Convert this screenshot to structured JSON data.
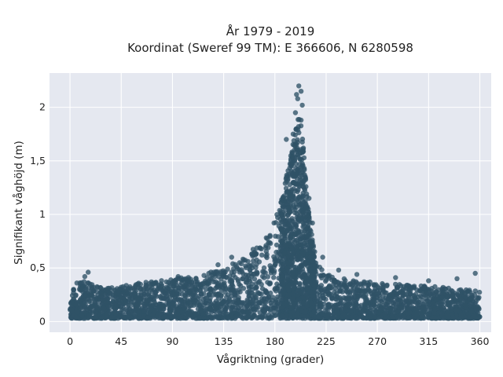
{
  "chart_data": {
    "type": "scatter",
    "title": "År 1979 - 2019",
    "subtitle": "Koordinat (Sweref 99 TM): E 366606, N 6280598",
    "xlabel": "Vågriktning (grader)",
    "ylabel": "Signifikant våghöjd (m)",
    "xlim": [
      -18,
      370
    ],
    "ylim": [
      -0.1,
      2.32
    ],
    "x_ticks": [
      0,
      45,
      90,
      135,
      180,
      225,
      270,
      315,
      360
    ],
    "x_tick_labels": [
      "0",
      "45",
      "90",
      "135",
      "180",
      "225",
      "270",
      "315",
      "360"
    ],
    "y_ticks": [
      0,
      0.5,
      1,
      1.5,
      2
    ],
    "y_tick_labels": [
      "0",
      "0,5",
      "1",
      "1,5",
      "2"
    ],
    "grid": true,
    "marker_color": "#2f5266",
    "plot_background": "#e5e8f0",
    "envelope": {
      "x": [
        0,
        10,
        20,
        30,
        45,
        60,
        75,
        90,
        105,
        120,
        135,
        145,
        155,
        165,
        175,
        180,
        185,
        190,
        195,
        198,
        200,
        202,
        204,
        206,
        208,
        210,
        213,
        216,
        220,
        225,
        230,
        240,
        255,
        270,
        285,
        300,
        315,
        330,
        345,
        360
      ],
      "y": [
        0.3,
        0.38,
        0.35,
        0.32,
        0.33,
        0.36,
        0.38,
        0.4,
        0.42,
        0.45,
        0.5,
        0.55,
        0.62,
        0.72,
        0.85,
        0.95,
        1.1,
        1.35,
        1.6,
        1.8,
        1.95,
        1.9,
        1.75,
        1.5,
        1.25,
        1.0,
        0.78,
        0.6,
        0.5,
        0.45,
        0.42,
        0.4,
        0.38,
        0.36,
        0.35,
        0.34,
        0.33,
        0.32,
        0.3,
        0.3
      ]
    },
    "notable_points": [
      {
        "x": 201,
        "y": 2.2
      },
      {
        "x": 203,
        "y": 2.15
      },
      {
        "x": 199,
        "y": 2.12
      },
      {
        "x": 200,
        "y": 2.08
      },
      {
        "x": 204,
        "y": 2.02
      },
      {
        "x": 198,
        "y": 1.95
      },
      {
        "x": 203,
        "y": 1.88
      },
      {
        "x": 199,
        "y": 1.8
      },
      {
        "x": 196,
        "y": 1.75
      },
      {
        "x": 190,
        "y": 1.7
      },
      {
        "x": 205,
        "y": 1.62
      },
      {
        "x": 194,
        "y": 1.5
      },
      {
        "x": 210,
        "y": 1.15
      },
      {
        "x": 213,
        "y": 0.92
      },
      {
        "x": 222,
        "y": 0.6
      },
      {
        "x": 236,
        "y": 0.48
      },
      {
        "x": 252,
        "y": 0.44
      },
      {
        "x": 286,
        "y": 0.41
      },
      {
        "x": 315,
        "y": 0.38
      },
      {
        "x": 340,
        "y": 0.4
      },
      {
        "x": 356,
        "y": 0.45
      },
      {
        "x": 16,
        "y": 0.46
      },
      {
        "x": 13,
        "y": 0.42
      },
      {
        "x": 6,
        "y": 0.36
      },
      {
        "x": 95,
        "y": 0.42
      },
      {
        "x": 130,
        "y": 0.53
      },
      {
        "x": 142,
        "y": 0.6
      },
      {
        "x": 160,
        "y": 0.63
      }
    ]
  }
}
